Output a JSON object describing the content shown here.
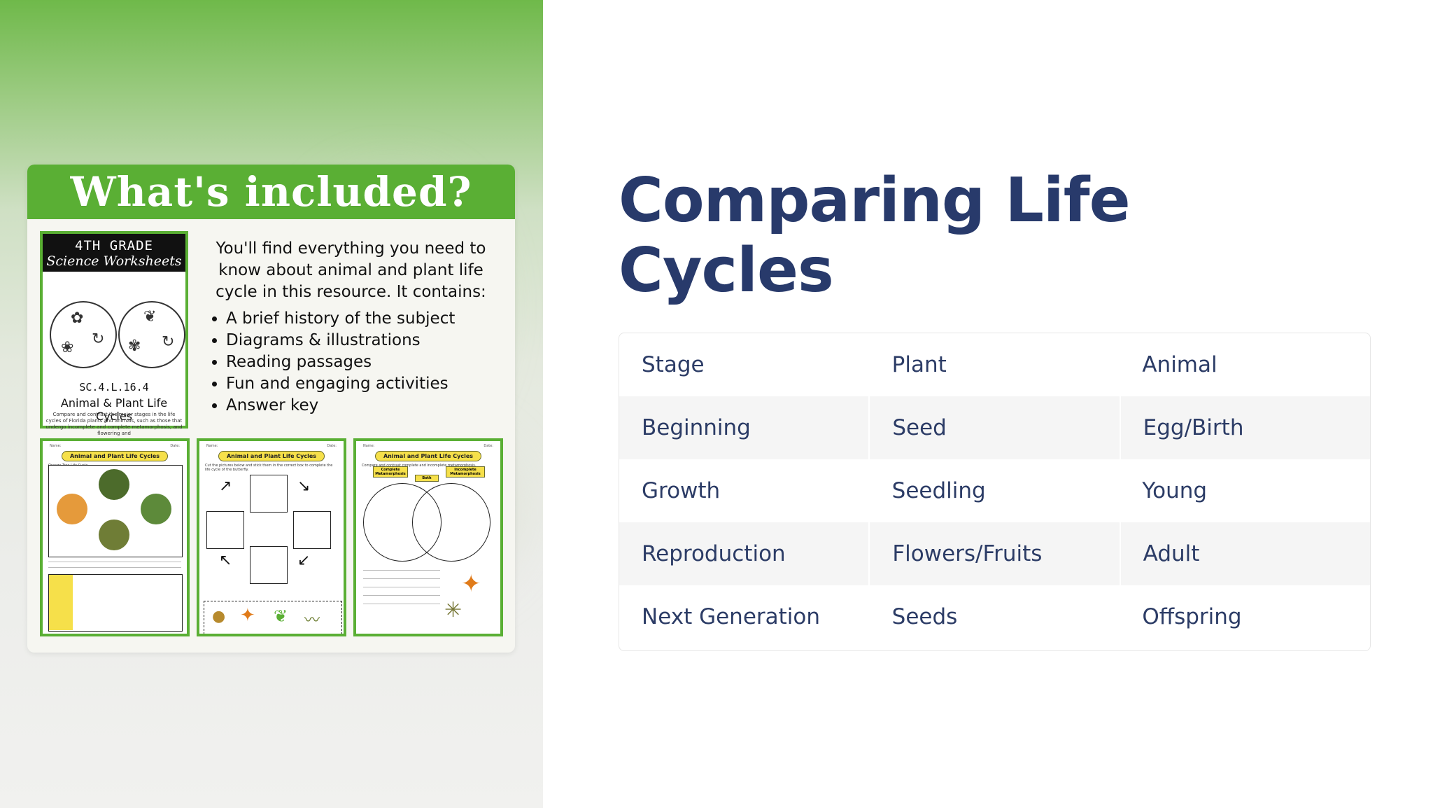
{
  "promo": {
    "header": "What's included?",
    "cover": {
      "grade": "4TH GRADE",
      "subtitle": "Science Worksheets",
      "code": "SC.4.L.16.4",
      "title": "Animal & Plant Life Cycles",
      "description": "Compare and contrast the major stages in the life cycles of Florida plants and animals, such as those that undergo incomplete and complete metamorphosis, and flowering and"
    },
    "intro": "You'll find everything you need to know about animal and plant life cycle in this resource. It contains:",
    "bullets": [
      "A brief history of the subject",
      "Diagrams & illustrations",
      "Reading passages",
      "Fun and engaging activities",
      "Answer key"
    ],
    "worksheets": [
      {
        "title": "Animal and Plant Life Cycles",
        "subtitle": "Orange Tree Life Cycle",
        "name_label": "Name:",
        "date_label": "Date:"
      },
      {
        "title": "Animal and Plant Life Cycles",
        "subtitle": "Cut the pictures below and stick them in the correct box to complete the life cycle of the butterfly.",
        "name_label": "Name:",
        "date_label": "Date:"
      },
      {
        "title": "Animal and Plant Life Cycles",
        "subtitle": "Compare and contrast complete and incomplete metamorphosis.",
        "name_label": "Name:",
        "date_label": "Date:",
        "tags": [
          "Complete Metamorphosis",
          "Both",
          "Incomplete Metamorphosis"
        ]
      }
    ]
  },
  "heading": "Comparing Life Cycles",
  "table": {
    "headers": [
      "Stage",
      "Plant",
      "Animal"
    ],
    "rows": [
      [
        "Beginning",
        "Seed",
        "Egg/Birth"
      ],
      [
        "Growth",
        "Seedling",
        "Young"
      ],
      [
        "Reproduction",
        "Flowers/Fruits",
        "Adult"
      ],
      [
        "Next Generation",
        "Seeds",
        "Offspring"
      ]
    ]
  },
  "colors": {
    "heading": "#283a6b",
    "table_text": "#2c3c66",
    "accent_green": "#5aaf34",
    "row_alt": "#f5f5f5"
  }
}
